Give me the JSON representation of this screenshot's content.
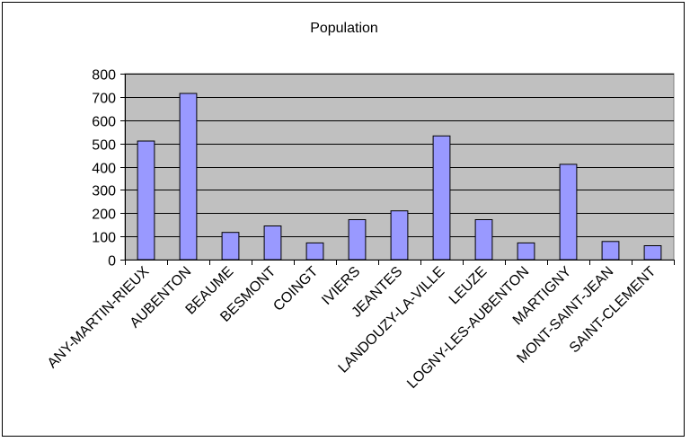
{
  "chart_data": {
    "type": "bar",
    "title": "Population",
    "xlabel": "",
    "ylabel": "",
    "categories": [
      "ANY-MARTIN-RIEUX",
      "AUBENTON",
      "BEAUME",
      "BESMONT",
      "COINGT",
      "IVIERS",
      "JEANTES",
      "LANDOUZY-LA-VILLE",
      "LEUZE",
      "LOGNY-LES-AUBENTON",
      "MARTIGNY",
      "MONT-SAINT-JEAN",
      "SAINT-CLEMENT"
    ],
    "values": [
      510,
      715,
      117,
      145,
      72,
      172,
      210,
      532,
      172,
      72,
      410,
      78,
      60
    ],
    "ylim": [
      0,
      800
    ],
    "yticks": [
      0,
      100,
      200,
      300,
      400,
      500,
      600,
      700,
      800
    ],
    "grid": true,
    "legend": "none",
    "colors": {
      "bar_fill": "#9999ff",
      "bar_stroke": "#000000",
      "plot_background": "#c0c0c0",
      "gridline": "#000000"
    }
  }
}
